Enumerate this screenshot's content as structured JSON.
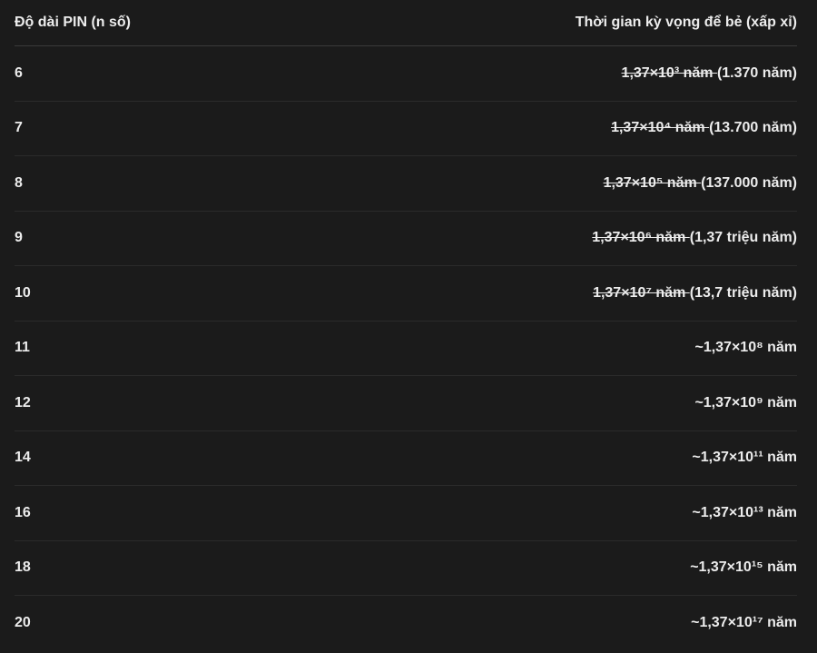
{
  "table": {
    "headers": [
      "Độ dài PIN (n số)",
      "Thời gian kỳ vọng để bẻ (xấp xỉ)"
    ],
    "rows": [
      {
        "n": "6",
        "struck": "1,37×10³ năm ",
        "value": "(1.370 năm)"
      },
      {
        "n": "7",
        "struck": "1,37×10⁴ năm ",
        "value": "(13.700 năm)"
      },
      {
        "n": "8",
        "struck": "1,37×10⁵ năm ",
        "value": "(137.000 năm)"
      },
      {
        "n": "9",
        "struck": "1,37×10⁶ năm ",
        "value": "(1,37 triệu năm)"
      },
      {
        "n": "10",
        "struck": "1,37×10⁷ năm ",
        "value": "(13,7 triệu năm)"
      },
      {
        "n": "11",
        "struck": "",
        "value": "~1,37×10⁸ năm"
      },
      {
        "n": "12",
        "struck": "",
        "value": "~1,37×10⁹ năm"
      },
      {
        "n": "14",
        "struck": "",
        "value": "~1,37×10¹¹ năm"
      },
      {
        "n": "16",
        "struck": "",
        "value": "~1,37×10¹³ năm"
      },
      {
        "n": "18",
        "struck": "",
        "value": "~1,37×10¹⁵ năm"
      },
      {
        "n": "20",
        "struck": "",
        "value": "~1,37×10¹⁷ năm"
      }
    ]
  }
}
